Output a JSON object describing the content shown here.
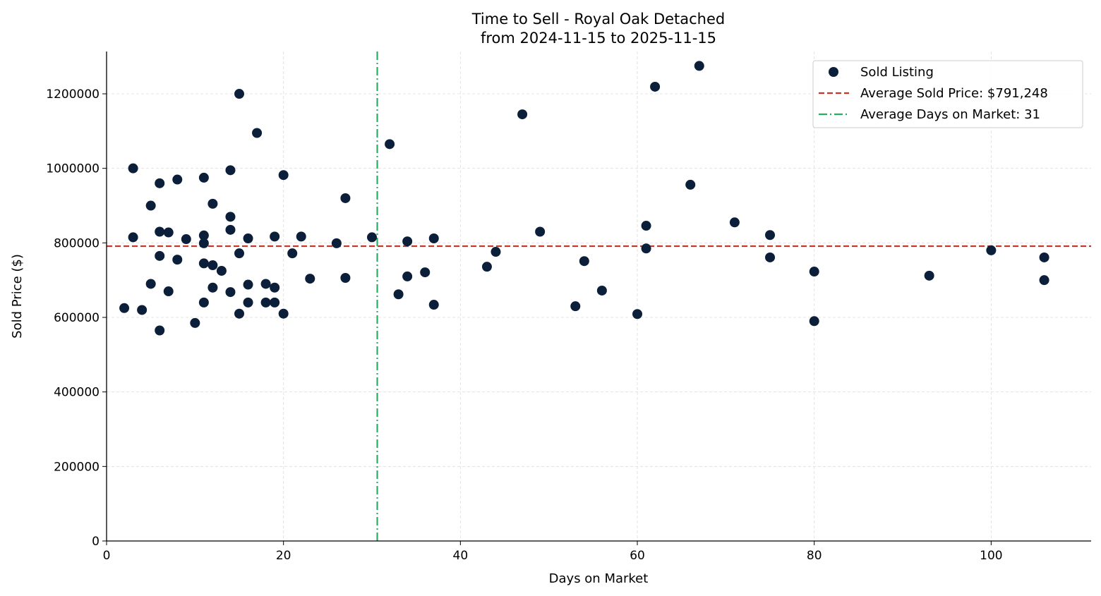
{
  "chart_data": {
    "type": "scatter",
    "title": "Time to Sell - Royal Oak Detached",
    "subtitle": "from 2024-11-15 to 2025-11-15",
    "xlabel": "Days on Market",
    "ylabel": "Sold Price ($)",
    "xlim": [
      0,
      111.3
    ],
    "ylim": [
      0,
      1313600
    ],
    "xticks": [
      0,
      20,
      40,
      60,
      80,
      100
    ],
    "yticks": [
      0,
      200000,
      400000,
      600000,
      800000,
      1000000,
      1200000
    ],
    "grid": true,
    "legend_position": "top-right",
    "colors": {
      "points": "#0b1f3a",
      "avg_price": "#c0392b",
      "avg_days": "#27ae60"
    },
    "legend": {
      "points": "Sold Listing",
      "avg_price": "Average Sold Price: $791,248",
      "avg_days": "Average Days on Market: 31"
    },
    "avg_price": 791248,
    "avg_days": 30.6,
    "points": [
      [
        2,
        625000
      ],
      [
        3,
        1000000
      ],
      [
        3,
        815000
      ],
      [
        4,
        620000
      ],
      [
        5,
        900000
      ],
      [
        5,
        690000
      ],
      [
        6,
        960000
      ],
      [
        6,
        830000
      ],
      [
        6,
        765000
      ],
      [
        6,
        565000
      ],
      [
        7,
        828000
      ],
      [
        7,
        670000
      ],
      [
        8,
        970000
      ],
      [
        8,
        755000
      ],
      [
        9,
        810000
      ],
      [
        10,
        585000
      ],
      [
        11,
        975000
      ],
      [
        11,
        820000
      ],
      [
        11,
        799000
      ],
      [
        11,
        745000
      ],
      [
        11,
        640000
      ],
      [
        12,
        905000
      ],
      [
        12,
        740000
      ],
      [
        12,
        680000
      ],
      [
        13,
        725000
      ],
      [
        14,
        995000
      ],
      [
        14,
        870000
      ],
      [
        14,
        835000
      ],
      [
        14,
        668000
      ],
      [
        15,
        1200000
      ],
      [
        15,
        772000
      ],
      [
        15,
        610000
      ],
      [
        16,
        812000
      ],
      [
        16,
        688000
      ],
      [
        16,
        640000
      ],
      [
        17,
        1095000
      ],
      [
        18,
        690000
      ],
      [
        18,
        640000
      ],
      [
        19,
        817000
      ],
      [
        19,
        680000
      ],
      [
        19,
        640000
      ],
      [
        20,
        982000
      ],
      [
        20,
        610000
      ],
      [
        21,
        772000
      ],
      [
        22,
        817000
      ],
      [
        23,
        704000
      ],
      [
        26,
        799000
      ],
      [
        27,
        920000
      ],
      [
        27,
        706000
      ],
      [
        30,
        815000
      ],
      [
        32,
        1065000
      ],
      [
        33,
        662000
      ],
      [
        34,
        804000
      ],
      [
        34,
        710000
      ],
      [
        36,
        721000
      ],
      [
        37,
        812000
      ],
      [
        37,
        634000
      ],
      [
        43,
        736000
      ],
      [
        44,
        776000
      ],
      [
        47,
        1145000
      ],
      [
        49,
        830000
      ],
      [
        53,
        630000
      ],
      [
        54,
        751000
      ],
      [
        56,
        672000
      ],
      [
        60,
        609000
      ],
      [
        61,
        846000
      ],
      [
        61,
        785000
      ],
      [
        62,
        1219000
      ],
      [
        66,
        956000
      ],
      [
        67,
        1275000
      ],
      [
        71,
        855000
      ],
      [
        75,
        821000
      ],
      [
        75,
        761000
      ],
      [
        80,
        723000
      ],
      [
        80,
        590000
      ],
      [
        93,
        712000
      ],
      [
        100,
        780000
      ],
      [
        106,
        761000
      ],
      [
        106,
        700000
      ]
    ]
  }
}
